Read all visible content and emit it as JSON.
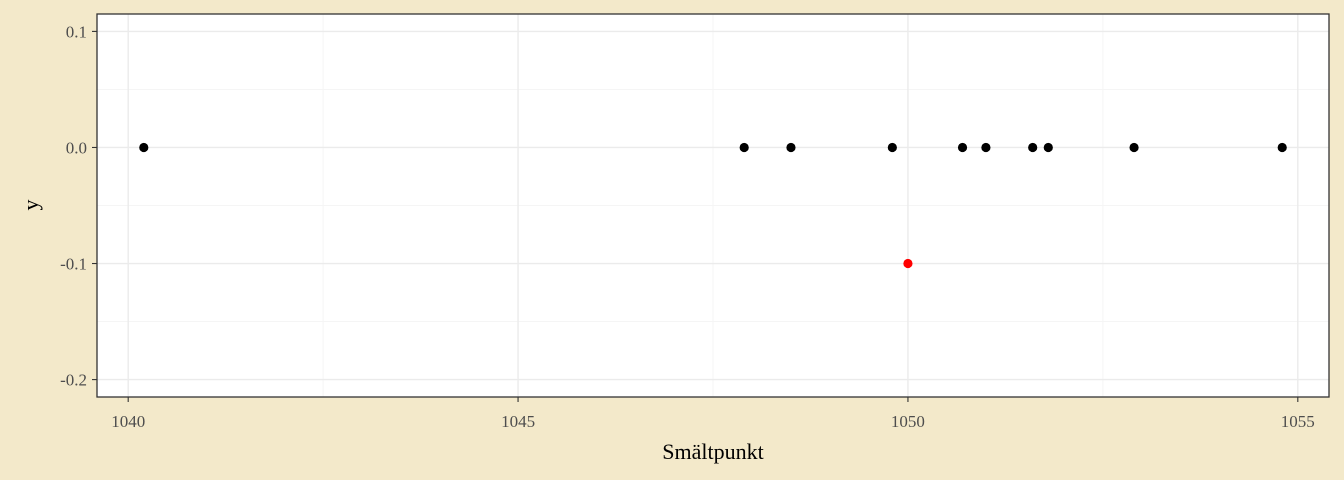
{
  "chart_data": {
    "type": "scatter",
    "title": "",
    "xlabel": "Smältpunkt",
    "ylabel": "y",
    "xlim": [
      1039.6,
      1055.4
    ],
    "ylim": [
      -0.215,
      0.115
    ],
    "x_ticks": [
      1040,
      1045,
      1050,
      1055
    ],
    "x_tick_labels": [
      "1040",
      "1045",
      "1050",
      "1055"
    ],
    "y_ticks": [
      0.1,
      0.0,
      -0.1,
      -0.2
    ],
    "y_tick_labels": [
      "0.1",
      "0.0",
      "-0.1",
      "-0.2"
    ],
    "grid": true,
    "series": [
      {
        "color": "#000000",
        "points": [
          {
            "x": 1040.2,
            "y": 0.0
          },
          {
            "x": 1047.9,
            "y": 0.0
          },
          {
            "x": 1048.5,
            "y": 0.0
          },
          {
            "x": 1049.8,
            "y": 0.0
          },
          {
            "x": 1050.7,
            "y": 0.0
          },
          {
            "x": 1051.0,
            "y": 0.0
          },
          {
            "x": 1051.6,
            "y": 0.0
          },
          {
            "x": 1051.8,
            "y": 0.0
          },
          {
            "x": 1052.9,
            "y": 0.0
          },
          {
            "x": 1054.8,
            "y": 0.0
          }
        ]
      },
      {
        "color": "#FF0000",
        "points": [
          {
            "x": 1050.0,
            "y": -0.1
          }
        ]
      }
    ],
    "colors": {
      "page_background": "#F3E9CA",
      "panel_background": "#FFFFFF",
      "grid_major": "#EBEBEB",
      "grid_minor": "#F5F5F5",
      "panel_border": "#333333",
      "tick_text": "#4D4D4D"
    }
  }
}
